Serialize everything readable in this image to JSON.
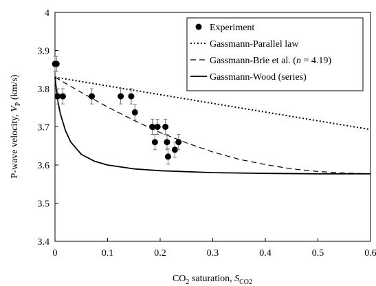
{
  "chart_data": {
    "type": "scatter",
    "xlabel": {
      "main": "CO",
      "sub1": "2",
      "mid": " saturation, ",
      "var": "S",
      "sub2": "CO2"
    },
    "ylabel": {
      "main": "P-wave velocity, ",
      "var": "V",
      "sub": "P",
      "unit": " (km/s)"
    },
    "xlim": [
      0,
      0.6
    ],
    "ylim": [
      3.4,
      4.0
    ],
    "xticks": [
      0,
      0.1,
      0.2,
      0.3,
      0.4,
      0.5,
      0.6
    ],
    "xtick_labels": [
      "0",
      "0.1",
      "0.2",
      "0.3",
      "0.4",
      "0.5",
      "0.6"
    ],
    "yticks": [
      3.4,
      3.5,
      3.6,
      3.7,
      3.8,
      3.9,
      4.0
    ],
    "ytick_labels": [
      "3.4",
      "3.5",
      "3.6",
      "3.7",
      "3.8",
      "3.9",
      "4"
    ],
    "grid": false,
    "legend_position": "top-right",
    "legend": [
      {
        "label": "Experiment",
        "style": "marker"
      },
      {
        "label": "Gassmann-Parallel law",
        "style": "dotted"
      },
      {
        "label_before": "Gassmann-Brie et al. (",
        "label_var": "n",
        "label_after": " = 4.19)",
        "style": "dashed"
      },
      {
        "label": "Gassmann-Wood (series)",
        "style": "solid"
      }
    ],
    "experiment": {
      "x": [
        0.0,
        0.003,
        0.005,
        0.015,
        0.07,
        0.125,
        0.145,
        0.152,
        0.185,
        0.19,
        0.195,
        0.21,
        0.213,
        0.215,
        0.228,
        0.235
      ],
      "y": [
        3.865,
        3.865,
        3.78,
        3.78,
        3.78,
        3.78,
        3.78,
        3.738,
        3.7,
        3.66,
        3.7,
        3.7,
        3.66,
        3.622,
        3.64,
        3.66
      ],
      "err": [
        0.02,
        0.02,
        0.02,
        0.02,
        0.02,
        0.02,
        0.02,
        0.02,
        0.02,
        0.02,
        0.02,
        0.02,
        0.02,
        0.02,
        0.02,
        0.02
      ]
    },
    "series": [
      {
        "name": "Gassmann-Parallel law",
        "style": "dotted",
        "x": [
          0,
          0.6
        ],
        "y": [
          3.83,
          3.693
        ]
      },
      {
        "name": "Gassmann-Brie et al.",
        "style": "dashed",
        "x": [
          0,
          0.05,
          0.1,
          0.15,
          0.2,
          0.25,
          0.3,
          0.35,
          0.4,
          0.45,
          0.5,
          0.55,
          0.6
        ],
        "y": [
          3.83,
          3.79,
          3.752,
          3.717,
          3.685,
          3.658,
          3.634,
          3.615,
          3.601,
          3.59,
          3.583,
          3.579,
          3.577
        ]
      },
      {
        "name": "Gassmann-Wood (series)",
        "style": "solid",
        "x": [
          0,
          0.005,
          0.01,
          0.02,
          0.03,
          0.05,
          0.075,
          0.1,
          0.15,
          0.2,
          0.3,
          0.4,
          0.5,
          0.6
        ],
        "y": [
          3.83,
          3.77,
          3.735,
          3.69,
          3.66,
          3.628,
          3.61,
          3.6,
          3.59,
          3.585,
          3.58,
          3.578,
          3.577,
          3.577
        ]
      }
    ]
  }
}
